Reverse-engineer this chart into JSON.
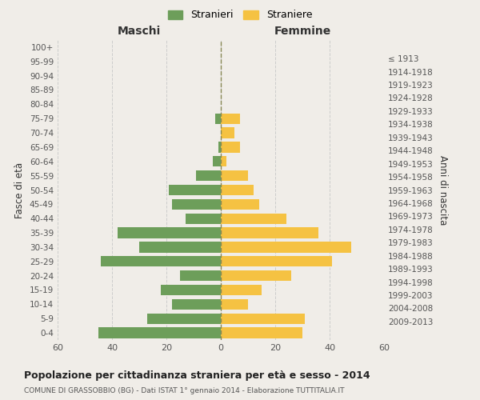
{
  "age_groups": [
    "0-4",
    "5-9",
    "10-14",
    "15-19",
    "20-24",
    "25-29",
    "30-34",
    "35-39",
    "40-44",
    "45-49",
    "50-54",
    "55-59",
    "60-64",
    "65-69",
    "70-74",
    "75-79",
    "80-84",
    "85-89",
    "90-94",
    "95-99",
    "100+"
  ],
  "birth_years": [
    "2009-2013",
    "2004-2008",
    "1999-2003",
    "1994-1998",
    "1989-1993",
    "1984-1988",
    "1979-1983",
    "1974-1978",
    "1969-1973",
    "1964-1968",
    "1959-1963",
    "1954-1958",
    "1949-1953",
    "1944-1948",
    "1939-1943",
    "1934-1938",
    "1929-1933",
    "1924-1928",
    "1919-1923",
    "1914-1918",
    "≤ 1913"
  ],
  "maschi": [
    45,
    27,
    18,
    22,
    15,
    44,
    30,
    38,
    13,
    18,
    19,
    9,
    3,
    1,
    0,
    2,
    0,
    0,
    0,
    0,
    0
  ],
  "femmine": [
    30,
    31,
    10,
    15,
    26,
    41,
    48,
    36,
    24,
    14,
    12,
    10,
    2,
    7,
    5,
    7,
    0,
    0,
    0,
    0,
    0
  ],
  "male_color": "#6d9e5a",
  "female_color": "#f5c242",
  "background_color": "#f0ede8",
  "grid_color": "#cccccc",
  "title": "Popolazione per cittadinanza straniera per età e sesso - 2014",
  "subtitle": "COMUNE DI GRASSOBBIO (BG) - Dati ISTAT 1° gennaio 2014 - Elaborazione TUTTITALIA.IT",
  "xlabel_left": "Maschi",
  "xlabel_right": "Femmine",
  "ylabel_left": "Fasce di età",
  "ylabel_right": "Anni di nascita",
  "legend_male": "Stranieri",
  "legend_female": "Straniere",
  "xlim": 60
}
